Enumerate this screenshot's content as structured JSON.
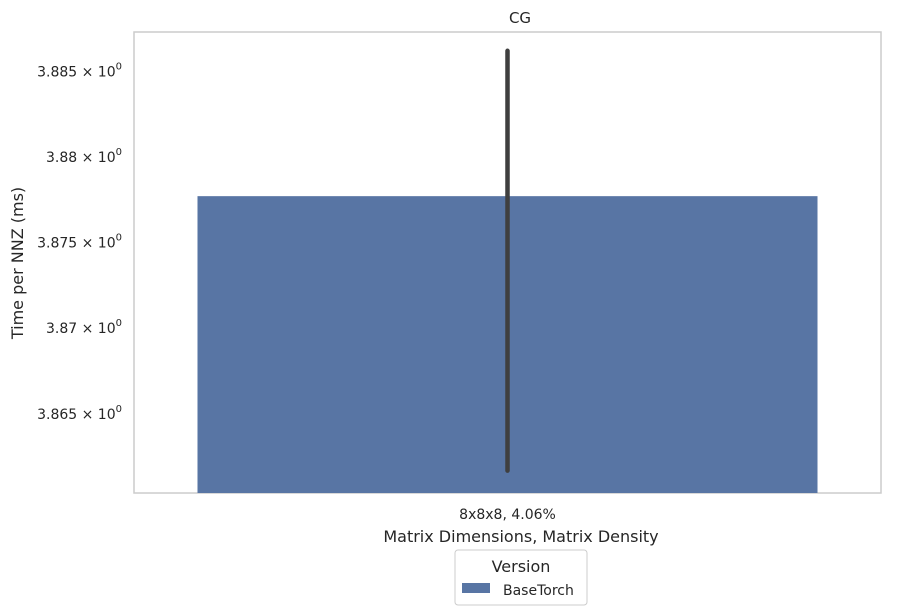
{
  "chart_data": {
    "type": "bar",
    "title": "CG",
    "xlabel": "Matrix Dimensions, Matrix Density",
    "ylabel": "Time per NNZ (ms)",
    "categories": [
      "8x8x8, 4.06%"
    ],
    "series": [
      {
        "name": "BaseTorch",
        "values": [
          3.8777
        ],
        "error_low": [
          3.8617
        ],
        "error_high": [
          3.8862
        ],
        "color": "#5875a4"
      }
    ],
    "yscale": "log",
    "ylim": [
      3.8604,
      3.8873
    ],
    "yticks": [
      {
        "base": "3.865",
        "exp": "0",
        "value": 3.865
      },
      {
        "base": "3.87",
        "exp": "0",
        "value": 3.87
      },
      {
        "base": "3.875",
        "exp": "0",
        "value": 3.875
      },
      {
        "base": "3.88",
        "exp": "0",
        "value": 3.88
      },
      {
        "base": "3.885",
        "exp": "0",
        "value": 3.885
      }
    ],
    "grid": false,
    "legend": {
      "title": "Version",
      "placement": "bottom-center"
    },
    "colors": {
      "bar": "#5875a4",
      "errorbar": "#3f3f3f",
      "frame": "#cccccc"
    }
  }
}
